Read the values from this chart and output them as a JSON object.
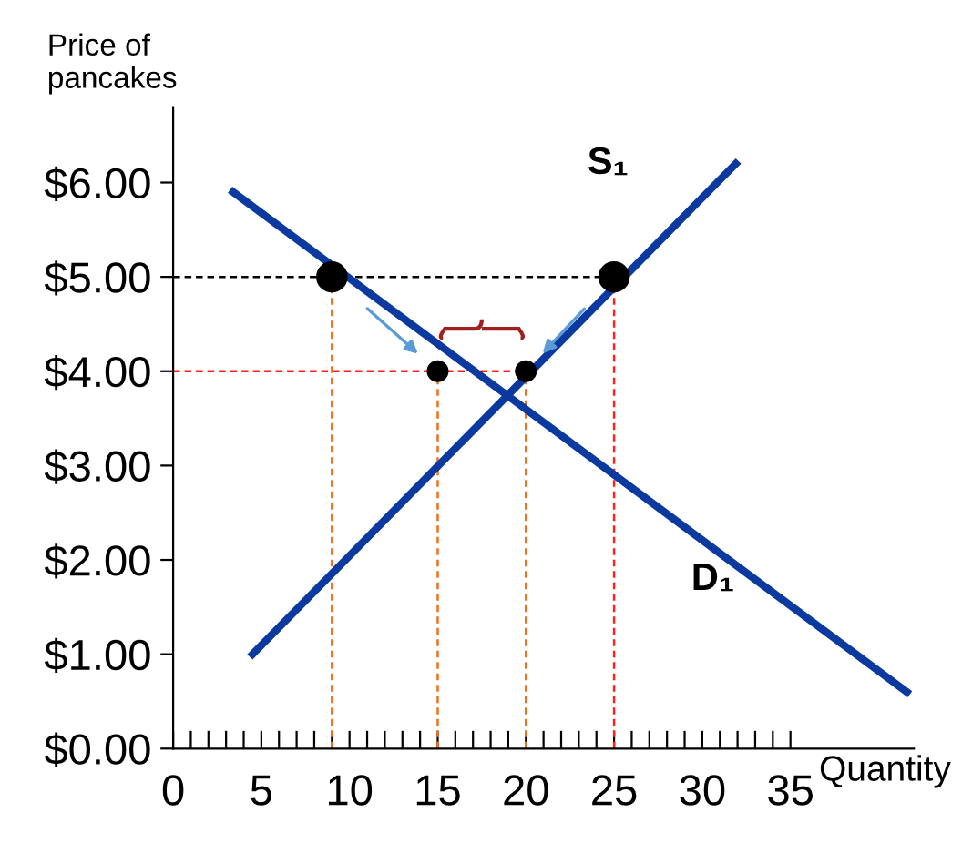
{
  "chart_data": {
    "type": "line",
    "ylabel": "Price of\npancakes",
    "xlabel": "Quantity",
    "xlim": [
      0,
      42
    ],
    "ylim": [
      0,
      6.8
    ],
    "xticks": [
      0,
      {
        "value": 1,
        "label": null
      },
      {
        "value": 2,
        "label": null
      },
      {
        "value": 3,
        "label": null
      },
      {
        "value": 4,
        "label": null
      },
      5,
      {
        "value": 6,
        "label": null
      },
      {
        "value": 7,
        "label": null
      },
      {
        "value": 8,
        "label": null
      },
      {
        "value": 9,
        "label": null
      },
      10,
      {
        "value": 11,
        "label": null
      },
      {
        "value": 12,
        "label": null
      },
      {
        "value": 13,
        "label": null
      },
      {
        "value": 14,
        "label": null
      },
      15,
      {
        "value": 16,
        "label": null
      },
      {
        "value": 17,
        "label": null
      },
      {
        "value": 18,
        "label": null
      },
      {
        "value": 19,
        "label": null
      },
      20,
      {
        "value": 21,
        "label": null
      },
      {
        "value": 22,
        "label": null
      },
      {
        "value": 23,
        "label": null
      },
      {
        "value": 24,
        "label": null
      },
      25,
      {
        "value": 26,
        "label": null
      },
      {
        "value": 27,
        "label": null
      },
      {
        "value": 28,
        "label": null
      },
      {
        "value": 29,
        "label": null
      },
      30,
      {
        "value": 31,
        "label": null
      },
      {
        "value": 32,
        "label": null
      },
      {
        "value": 33,
        "label": null
      },
      {
        "value": 34,
        "label": null
      },
      35
    ],
    "yticks": [
      {
        "value": 0,
        "label": "$0.00"
      },
      {
        "value": 1,
        "label": "$1.00"
      },
      {
        "value": 2,
        "label": "$2.00"
      },
      {
        "value": 3,
        "label": "$3.00"
      },
      {
        "value": 4,
        "label": "$4.00"
      },
      {
        "value": 5,
        "label": "$5.00"
      },
      {
        "value": 6,
        "label": "$6.00"
      }
    ],
    "grid": false,
    "legend": false,
    "series": [
      {
        "color": "#000000",
        "line_style": "dashed",
        "x": [
          0,
          25
        ],
        "values": [
          5,
          5
        ]
      },
      {
        "color": "#ff2020",
        "line_style": "dashed",
        "x": [
          0,
          20
        ],
        "values": [
          4,
          4
        ]
      },
      {
        "color": "#f07020",
        "line_style": "dashed",
        "x": [
          9,
          9
        ],
        "values": [
          0,
          5
        ]
      },
      {
        "color": "#f07020",
        "line_style": "dashed",
        "x": [
          15,
          15
        ],
        "values": [
          0,
          4
        ]
      },
      {
        "color": "#f07020",
        "line_style": "dashed",
        "x": [
          20,
          20
        ],
        "values": [
          0,
          4
        ]
      },
      {
        "color": "#ff2020",
        "line_style": "dashed",
        "x": [
          25,
          25
        ],
        "values": [
          0,
          5
        ]
      },
      {
        "name": "D₁",
        "color": "#0a3aa0",
        "line_style": "solid",
        "x": [
          3.4,
          41.6
        ],
        "values": [
          5.9,
          0.6
        ]
      },
      {
        "name": "S₁",
        "color": "#0a3aa0",
        "line_style": "solid",
        "x": [
          4.5,
          31.9
        ],
        "values": [
          1.0,
          6.2
        ]
      },
      {
        "type": "bubble",
        "color": "#000000",
        "x": [
          9,
          25,
          15,
          20
        ],
        "values": [
          5,
          5,
          4,
          4
        ],
        "sizes": [
          1,
          1,
          0.45,
          0.45
        ]
      }
    ]
  }
}
